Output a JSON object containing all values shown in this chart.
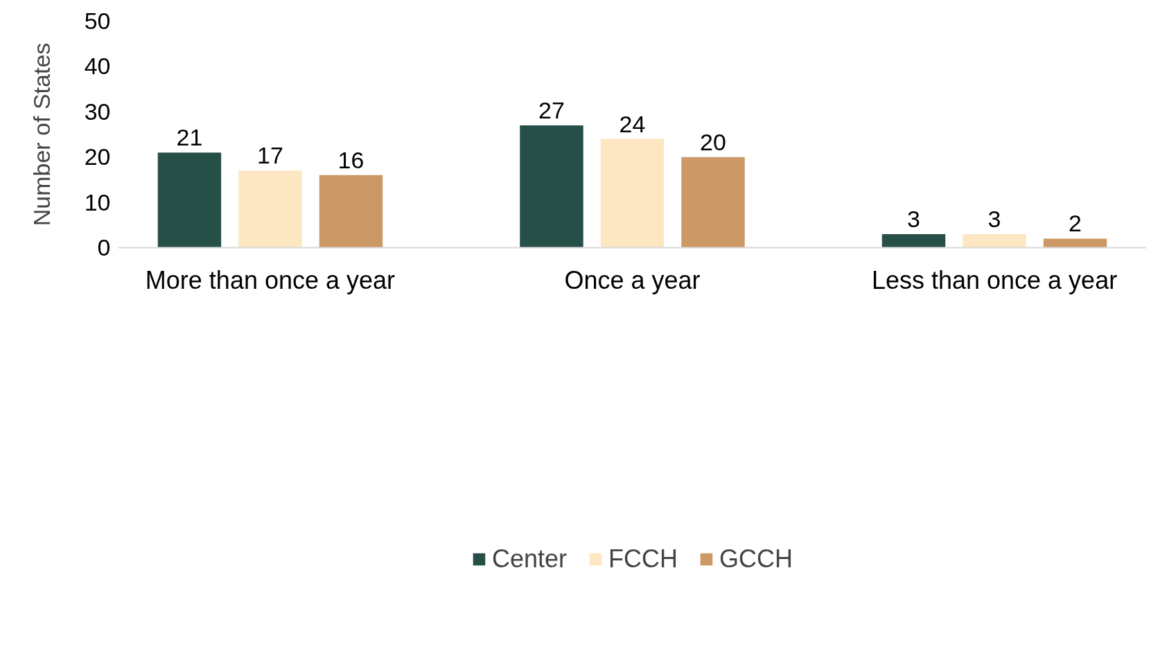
{
  "chart_data": {
    "type": "bar",
    "ylabel": "Number of States",
    "categories": [
      "More than once a year",
      "Once a year",
      "Less than once a year"
    ],
    "series": [
      {
        "name": "Center",
        "color": "#264f47",
        "values": [
          21,
          27,
          3
        ]
      },
      {
        "name": "FCCH",
        "color": "#fde7c3",
        "values": [
          17,
          24,
          3
        ]
      },
      {
        "name": "GCCH",
        "color": "#cc9966",
        "values": [
          16,
          20,
          2
        ]
      }
    ],
    "ylim": [
      0,
      50
    ],
    "yticks": [
      0,
      10,
      20,
      30,
      40,
      50
    ],
    "data_labels": true,
    "legend": "bottom"
  }
}
